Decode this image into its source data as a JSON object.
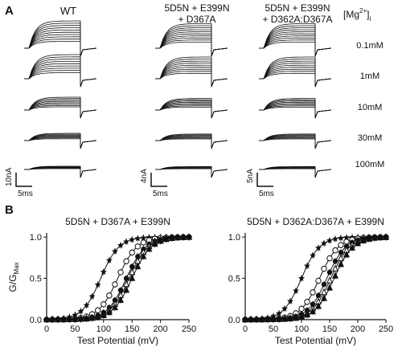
{
  "panel_a": {
    "label": "A",
    "columns": [
      {
        "title_lines": [
          "WT"
        ],
        "scale_v": "10nA",
        "scale_t": "5ms"
      },
      {
        "title_lines": [
          "5D5N + E399N",
          "+ D367A"
        ],
        "scale_v": "4nA",
        "scale_t": "5ms"
      },
      {
        "title_lines": [
          "5D5N + E399N",
          "+ D362A:D367A"
        ],
        "scale_v": "5nA",
        "scale_t": "5ms"
      }
    ],
    "mg_header": "[Mg",
    "mg_super": "2+",
    "mg_header_end": "]",
    "mg_header_sub": "i",
    "conditions": [
      "0.1mM",
      "1mM",
      "10mM",
      "30mM",
      "100mM"
    ]
  },
  "panel_b": {
    "label": "B",
    "y_label_main": "G/G",
    "y_label_sub": "Max"
  },
  "chart_data": [
    {
      "type": "scatter",
      "title": "5D5N + D367A + E399N",
      "xlabel": "Test Potential (mV)",
      "ylabel": "G/GMax",
      "xlim": [
        0,
        250
      ],
      "ylim": [
        0,
        1.05
      ],
      "x_ticks": [
        0,
        50,
        100,
        150,
        200,
        250
      ],
      "y_ticks": [
        0.0,
        0.5,
        1.0
      ],
      "series": [
        {
          "marker": "star",
          "v_half": 95,
          "slope": 16,
          "x": [
            0,
            10,
            20,
            30,
            40,
            50,
            60,
            70,
            80,
            90,
            100,
            110,
            120,
            130,
            140,
            150,
            160,
            170,
            180,
            190,
            200,
            210,
            220,
            230,
            240,
            250
          ]
        },
        {
          "marker": "open-circle",
          "v_half": 125,
          "slope": 17,
          "x": [
            0,
            10,
            20,
            30,
            40,
            50,
            60,
            70,
            80,
            90,
            100,
            110,
            120,
            130,
            140,
            150,
            160,
            170,
            180,
            190,
            200,
            210,
            220,
            230,
            240,
            250
          ]
        },
        {
          "marker": "filled-circle",
          "v_half": 140,
          "slope": 17,
          "x": [
            0,
            10,
            20,
            30,
            40,
            50,
            60,
            70,
            80,
            90,
            100,
            110,
            120,
            130,
            140,
            150,
            160,
            170,
            180,
            190,
            200,
            210,
            220,
            230,
            240,
            250
          ]
        },
        {
          "marker": "open-triangle",
          "v_half": 145,
          "slope": 17,
          "x": [
            0,
            10,
            20,
            30,
            40,
            50,
            60,
            70,
            80,
            90,
            100,
            110,
            120,
            130,
            140,
            150,
            160,
            170,
            180,
            190,
            200,
            210,
            220,
            230,
            240,
            250
          ]
        },
        {
          "marker": "filled-triangle",
          "v_half": 150,
          "slope": 17,
          "x": [
            0,
            10,
            20,
            30,
            40,
            50,
            60,
            70,
            80,
            90,
            100,
            110,
            120,
            130,
            140,
            150,
            160,
            170,
            180,
            190,
            200,
            210,
            220,
            230,
            240,
            250
          ]
        }
      ]
    },
    {
      "type": "scatter",
      "title": "5D5N + D362A:D367A + E399N",
      "xlabel": "Test Potential (mV)",
      "ylabel": "G/GMax",
      "xlim": [
        0,
        250
      ],
      "ylim": [
        0,
        1.05
      ],
      "x_ticks": [
        0,
        50,
        100,
        150,
        200,
        250
      ],
      "y_ticks": [
        0.0,
        0.5,
        1.0
      ],
      "series": [
        {
          "marker": "star",
          "v_half": 100,
          "slope": 16,
          "x": [
            0,
            10,
            20,
            30,
            40,
            50,
            60,
            70,
            80,
            90,
            100,
            110,
            120,
            130,
            140,
            150,
            160,
            170,
            180,
            190,
            200,
            210,
            220,
            230,
            240,
            250
          ]
        },
        {
          "marker": "open-circle",
          "v_half": 132,
          "slope": 17,
          "x": [
            0,
            10,
            20,
            30,
            40,
            50,
            60,
            70,
            80,
            90,
            100,
            110,
            120,
            130,
            140,
            150,
            160,
            170,
            180,
            190,
            200,
            210,
            220,
            230,
            240,
            250
          ]
        },
        {
          "marker": "filled-circle",
          "v_half": 145,
          "slope": 17,
          "x": [
            0,
            10,
            20,
            30,
            40,
            50,
            60,
            70,
            80,
            90,
            100,
            110,
            120,
            130,
            140,
            150,
            160,
            170,
            180,
            190,
            200,
            210,
            220,
            230,
            240,
            250
          ]
        },
        {
          "marker": "open-triangle",
          "v_half": 152,
          "slope": 17,
          "x": [
            0,
            10,
            20,
            30,
            40,
            50,
            60,
            70,
            80,
            90,
            100,
            110,
            120,
            130,
            140,
            150,
            160,
            170,
            180,
            190,
            200,
            210,
            220,
            230,
            240,
            250
          ]
        },
        {
          "marker": "filled-triangle",
          "v_half": 158,
          "slope": 17,
          "x": [
            0,
            10,
            20,
            30,
            40,
            50,
            60,
            70,
            80,
            90,
            100,
            110,
            120,
            130,
            140,
            150,
            160,
            170,
            180,
            190,
            200,
            210,
            220,
            230,
            240,
            250
          ]
        }
      ]
    }
  ]
}
